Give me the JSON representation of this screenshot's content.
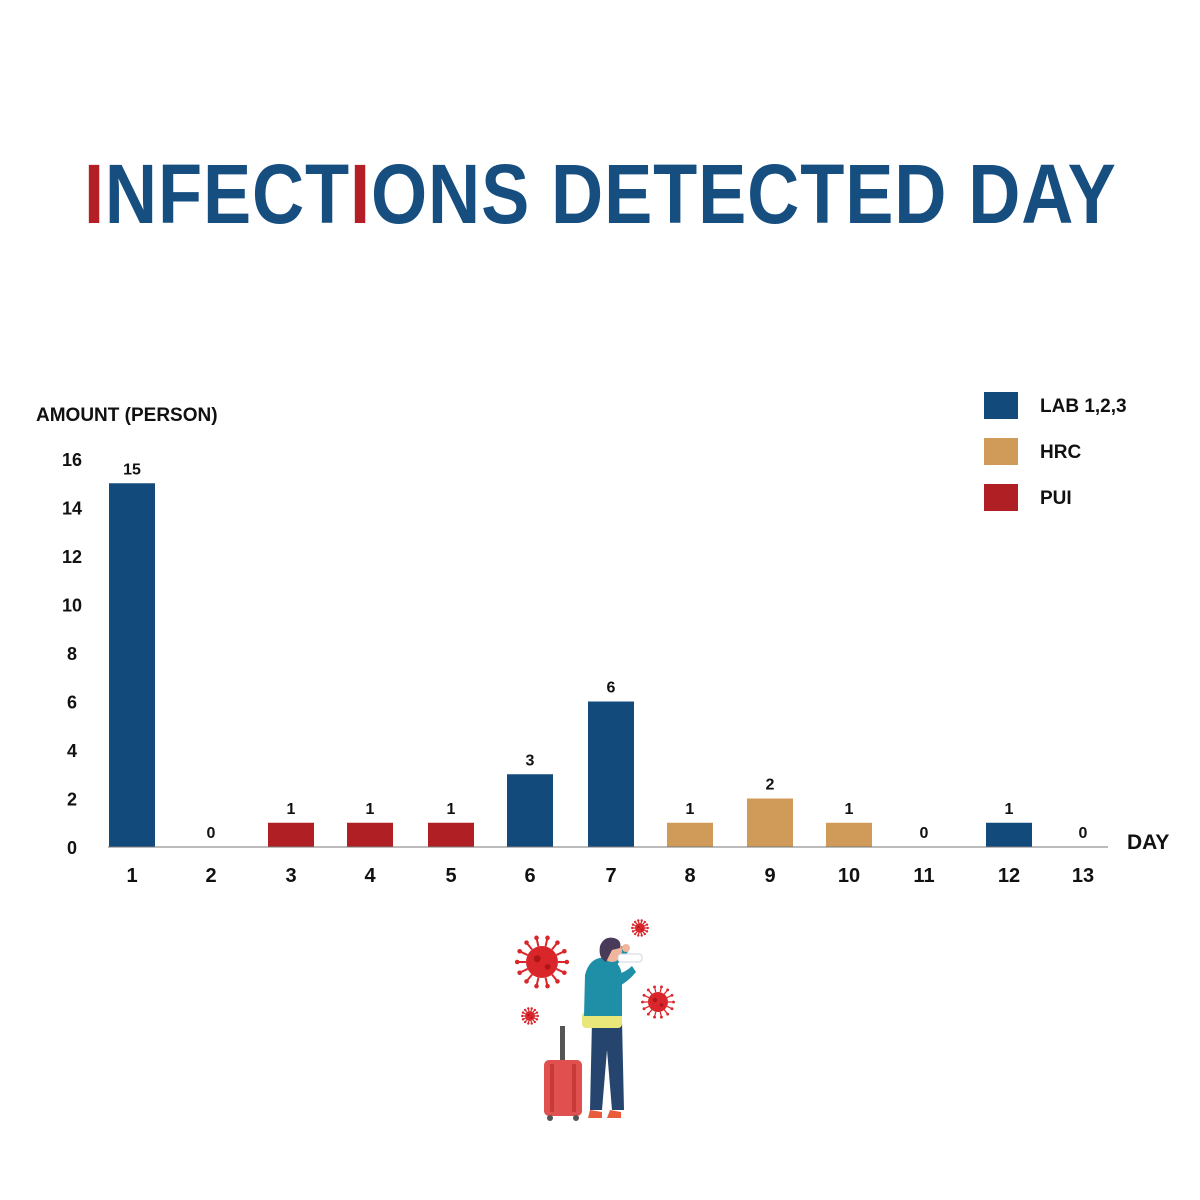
{
  "title": {
    "text": "INFECTIONS DETECTED DAY",
    "accent_color": "#b31f24",
    "main_color": "#164e80"
  },
  "colors": {
    "LAB 1,2,3": "#124a7c",
    "HRC": "#d09a58",
    "PUI": "#b01f24"
  },
  "chart_data": {
    "type": "bar",
    "ylabel": "AMOUNT (PERSON)",
    "xlabel": "DAY",
    "ylim": [
      0,
      16
    ],
    "yticks": [
      0,
      2,
      4,
      6,
      8,
      10,
      12,
      14,
      16
    ],
    "categories": [
      "1",
      "2",
      "3",
      "4",
      "5",
      "6",
      "7",
      "8",
      "9",
      "10",
      "11",
      "12",
      "13"
    ],
    "values": [
      15,
      0,
      1,
      1,
      1,
      3,
      6,
      1,
      2,
      1,
      0,
      1,
      0
    ],
    "groups": [
      "LAB 1,2,3",
      "LAB 1,2,3",
      "PUI",
      "PUI",
      "PUI",
      "LAB 1,2,3",
      "LAB 1,2,3",
      "HRC",
      "HRC",
      "HRC",
      "LAB 1,2,3",
      "LAB 1,2,3",
      "LAB 1,2,3"
    ],
    "legend": {
      "position": "top-right",
      "entries": [
        "LAB 1,2,3",
        "HRC",
        "PUI"
      ]
    },
    "grid": false
  },
  "illustration": {
    "name": "traveler-with-virus-illustration",
    "icons": [
      "virus-icon",
      "person-icon",
      "suitcase-icon"
    ]
  }
}
